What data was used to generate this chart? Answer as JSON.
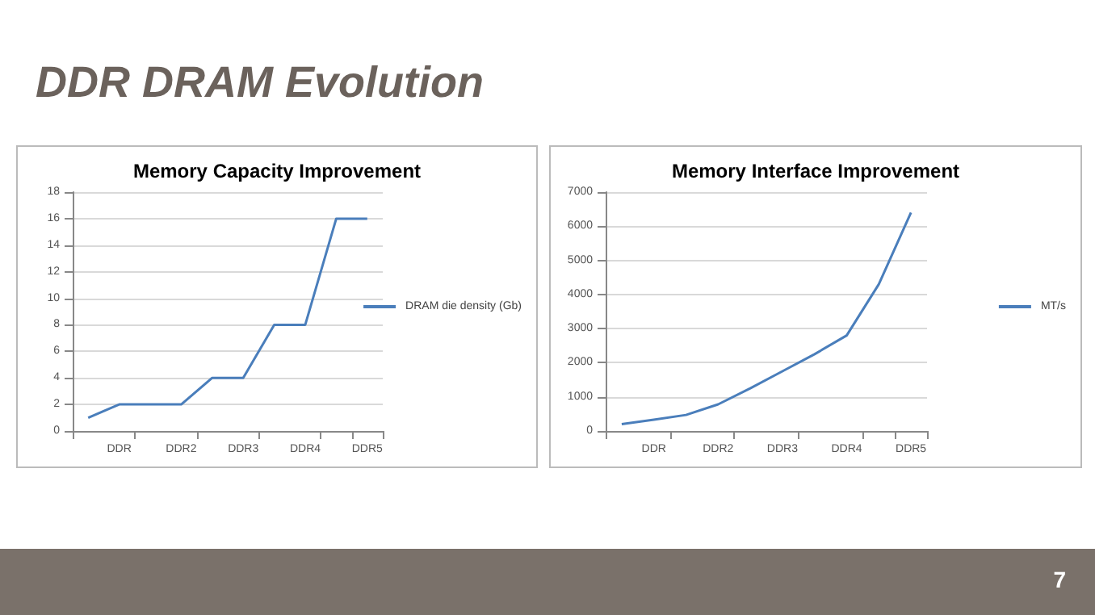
{
  "chart_data": [
    {
      "type": "line",
      "title": "Memory Capacity Improvement",
      "annotations": [
        "DDR DRAM Evolution",
        "7"
      ],
      "categories": [
        null,
        "DDR",
        null,
        "DDR2",
        null,
        "DDR3",
        null,
        "DDR4",
        null,
        "DDR5"
      ],
      "series": [
        {
          "name": "DRAM die density (Gb)",
          "color": "#4a7ebb",
          "values": [
            1,
            2,
            2,
            2,
            4,
            4,
            8,
            8,
            16,
            16
          ]
        }
      ],
      "ylim": [
        0,
        18
      ],
      "yticks": [
        0,
        2,
        4,
        6,
        8,
        10,
        12,
        14,
        16,
        18
      ],
      "grid": "y",
      "legend": "right",
      "marker": "none"
    },
    {
      "type": "line",
      "title": "Memory Interface Improvement",
      "categories": [
        null,
        "DDR",
        null,
        "DDR2",
        null,
        "DDR3",
        null,
        "DDR4",
        null,
        "DDR5"
      ],
      "series": [
        {
          "name": "MT/s",
          "color": "#4a7ebb",
          "values": [
            200,
            330,
            470,
            780,
            1250,
            1750,
            2250,
            2800,
            4300,
            6400
          ]
        }
      ],
      "ylim": [
        0,
        7000
      ],
      "yticks": [
        0,
        1000,
        2000,
        3000,
        4000,
        5000,
        6000,
        7000
      ],
      "grid": "y",
      "legend": "right",
      "marker": "none"
    }
  ]
}
